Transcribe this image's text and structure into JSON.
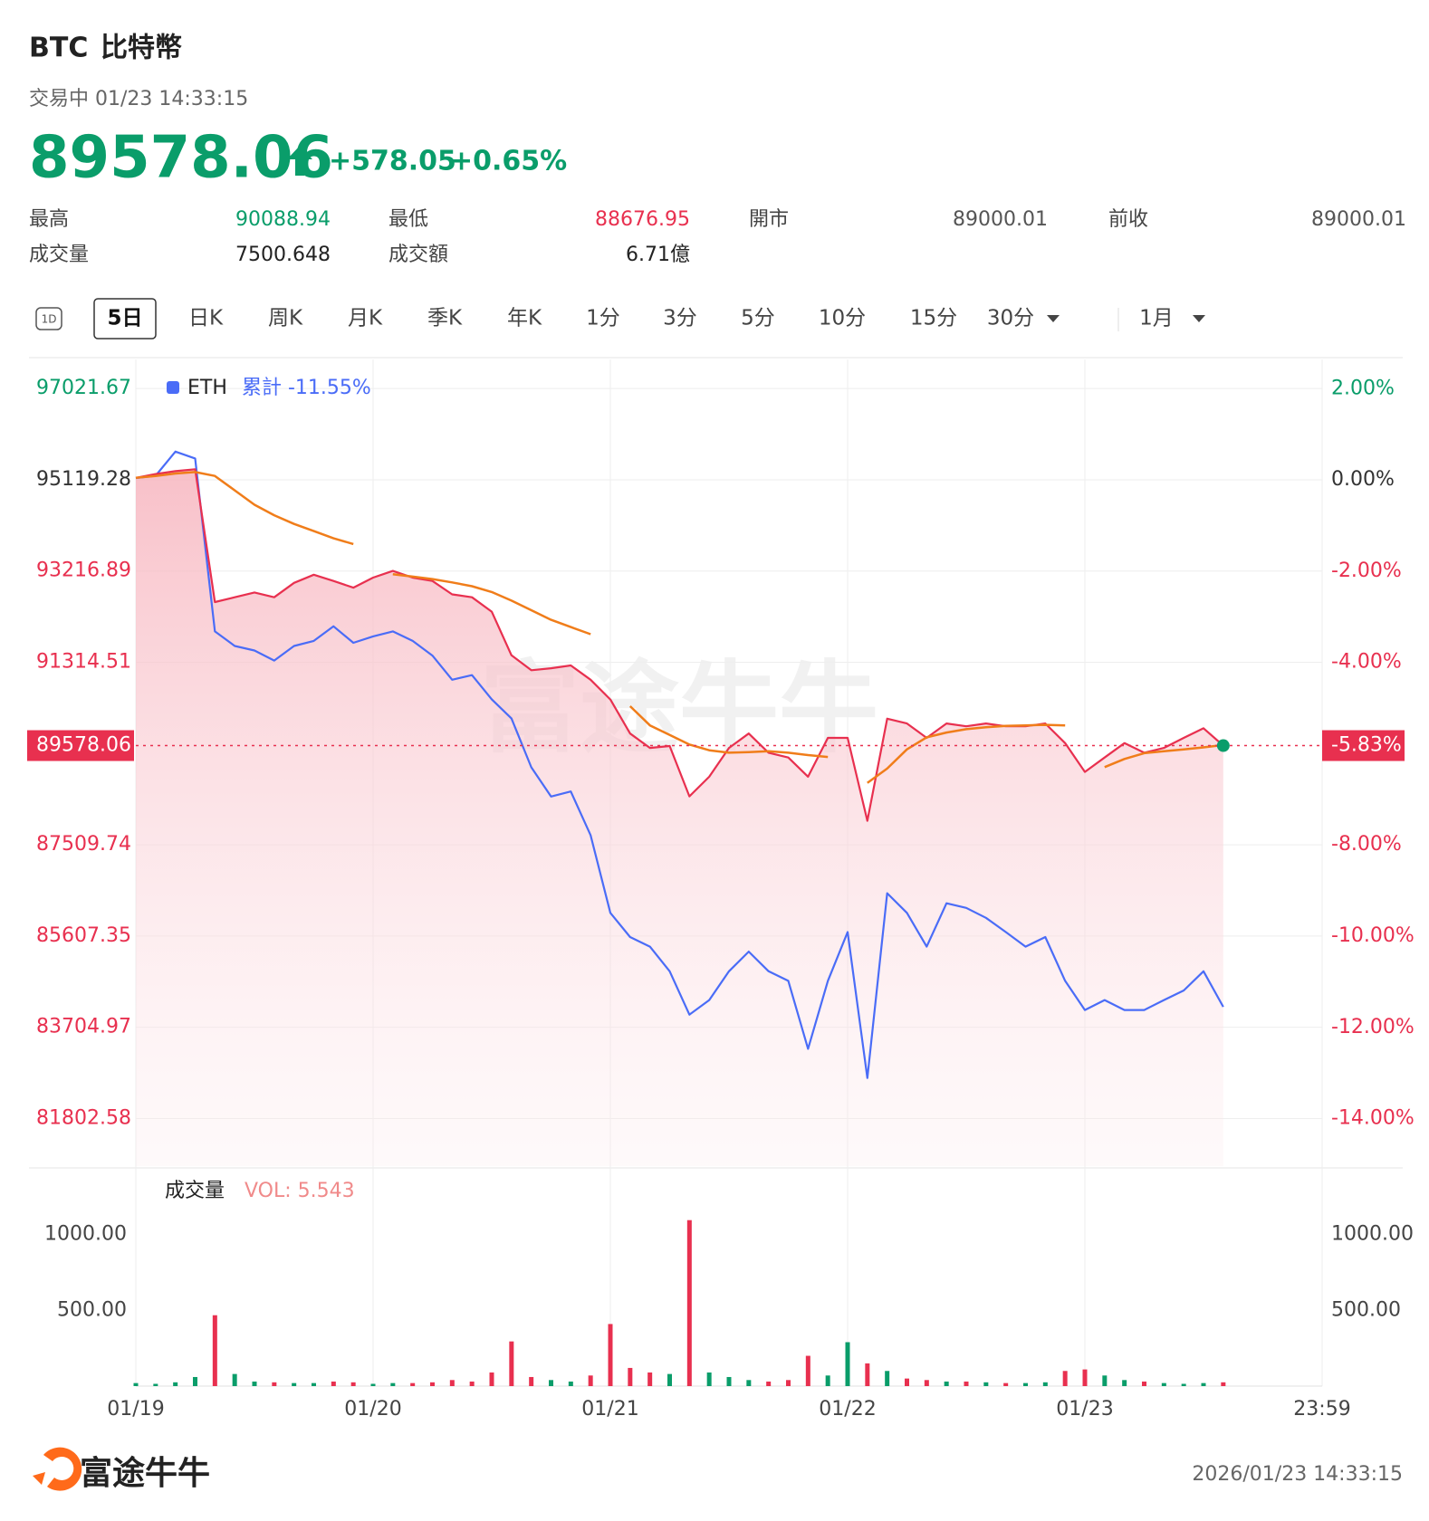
{
  "header": {
    "symbol": "BTC",
    "name": "比特幣",
    "status": "交易中 01/23 14:33:15",
    "price": "89578.06",
    "change": "+578.05",
    "change_pct": "+0.65%",
    "stats": [
      {
        "label": "最高",
        "value": "90088.94",
        "color": "#0a9d6a"
      },
      {
        "label": "最低",
        "value": "88676.95",
        "color": "#e8304f"
      },
      {
        "label": "開市",
        "value": "89000.01",
        "color": "#555555"
      },
      {
        "label": "前收",
        "value": "89000.01",
        "color": "#555555"
      },
      {
        "label": "成交量",
        "value": "7500.648",
        "color": "#222222"
      },
      {
        "label": "成交額",
        "value": "6.71億",
        "color": "#222222"
      }
    ]
  },
  "tabs": [
    {
      "label": "1D",
      "icon": true
    },
    {
      "label": "5日",
      "selected": true
    },
    {
      "label": "日K"
    },
    {
      "label": "周K"
    },
    {
      "label": "月K"
    },
    {
      "label": "季K"
    },
    {
      "label": "年K"
    },
    {
      "label": "1分"
    },
    {
      "label": "3分"
    },
    {
      "label": "5分"
    },
    {
      "label": "10分"
    },
    {
      "label": "15分"
    },
    {
      "label": "30分",
      "dropdown": true
    },
    {
      "label": "1月",
      "dropdown": true
    }
  ],
  "chart_data": [
    {
      "type": "line",
      "categories": [
        "01/19",
        null,
        null,
        null,
        null,
        null,
        null,
        null,
        null,
        null,
        null,
        null,
        "01/20",
        null,
        null,
        null,
        null,
        null,
        null,
        null,
        null,
        null,
        null,
        null,
        "01/21",
        null,
        null,
        null,
        null,
        null,
        null,
        null,
        null,
        null,
        null,
        null,
        "01/22",
        null,
        null,
        null,
        null,
        null,
        null,
        null,
        null,
        null,
        null,
        null,
        "01/23",
        null,
        null,
        null,
        null,
        null,
        null,
        null,
        null,
        null,
        null,
        null,
        "23:59"
      ],
      "series": [
        {
          "color": "#e8304f",
          "fill": true,
          "values": [
            95160,
            95240,
            95300,
            95340,
            92570,
            92670,
            92770,
            92670,
            92970,
            93140,
            93010,
            92870,
            93080,
            93220,
            93080,
            93010,
            92730,
            92670,
            92370,
            91460,
            91150,
            91190,
            91250,
            90950,
            90540,
            89830,
            89530,
            89570,
            88520,
            88930,
            89530,
            89830,
            89430,
            89330,
            88930,
            89740,
            89740,
            88010,
            90140,
            90040,
            89740,
            90040,
            89980,
            90040,
            89980,
            89980,
            90040,
            89630,
            89030,
            89330,
            89630,
            89430,
            89530,
            89740,
            89940,
            89578.06,
            null,
            null,
            null,
            null,
            null
          ]
        },
        {
          "name": "ETH",
          "color": "#4a6cf7",
          "axis": "y2",
          "values": [
            0.04,
            0.09,
            0.62,
            0.47,
            -3.32,
            -3.64,
            -3.74,
            -3.96,
            -3.64,
            -3.53,
            -3.21,
            -3.57,
            -3.43,
            -3.32,
            -3.53,
            -3.85,
            -4.38,
            -4.28,
            -4.81,
            -5.23,
            -6.3,
            -6.94,
            -6.83,
            -7.79,
            -9.49,
            -10.02,
            -10.23,
            -10.77,
            -11.72,
            -11.4,
            -10.77,
            -10.34,
            -10.77,
            -10.98,
            -12.47,
            -10.98,
            -9.91,
            -13.11,
            -9.06,
            -9.49,
            -10.23,
            -9.28,
            -9.38,
            -9.6,
            -9.91,
            -10.23,
            -10.02,
            -10.98,
            -11.62,
            -11.4,
            -11.62,
            -11.62,
            -11.4,
            -11.19,
            -10.77,
            -11.55,
            null,
            null,
            null,
            null,
            null
          ]
        },
        {
          "color": "#f07d1a",
          "values": [
            95160,
            95200,
            95250,
            95280,
            95200,
            94900,
            94600,
            94380,
            94200,
            94050,
            93900,
            93780,
            null,
            93150,
            93100,
            93050,
            92980,
            92900,
            92780,
            92600,
            92400,
            92200,
            92050,
            91900,
            null,
            90400,
            90000,
            89800,
            89600,
            89480,
            89430,
            89440,
            89460,
            89430,
            89380,
            89340,
            null,
            88800,
            89100,
            89500,
            89750,
            89850,
            89920,
            89960,
            89990,
            90000,
            90010,
            90000,
            null,
            89130,
            89300,
            89420,
            89460,
            89500,
            89540,
            89590,
            null,
            null,
            null,
            null,
            null
          ]
        }
      ],
      "legend_note": "累計 -11.55%",
      "watermark": "富途牛牛",
      "ylim": [
        80811,
        97629
      ],
      "yticks": [
        97021.67,
        95119.28,
        93216.89,
        91314.51,
        87509.74,
        85607.35,
        83704.97,
        81802.58
      ],
      "y2lim": [
        -15.04,
        2.64
      ],
      "y2ticks": [
        {
          "value": 2,
          "label": "2.00%"
        },
        {
          "value": 0,
          "label": "0.00%"
        },
        {
          "value": -2,
          "label": "-2.00%"
        },
        {
          "value": -4,
          "label": "-4.00%"
        },
        {
          "value": -8,
          "label": "-8.00%"
        },
        {
          "value": -10,
          "label": "-10.00%"
        },
        {
          "value": -12,
          "label": "-12.00%"
        },
        {
          "value": -14,
          "label": "-14.00%"
        }
      ],
      "last_value": 89578.06,
      "last_change_label": "-5.83%",
      "grid": true
    },
    {
      "type": "bar",
      "title": "成交量",
      "annotation": "VOL: 5.543",
      "up_color": "#0a9d6a",
      "down_color": "#e8304f",
      "values": [
        20,
        15,
        25,
        60,
        468,
        80,
        30,
        25,
        20,
        20,
        30,
        25,
        15,
        20,
        20,
        25,
        40,
        30,
        90,
        295,
        60,
        40,
        30,
        70,
        410,
        120,
        90,
        80,
        1096,
        90,
        60,
        40,
        30,
        40,
        200,
        70,
        290,
        150,
        100,
        50,
        40,
        30,
        30,
        25,
        20,
        20,
        25,
        100,
        110,
        70,
        40,
        30,
        20,
        15,
        20,
        25,
        null,
        null,
        null,
        null,
        null
      ],
      "ylim": [
        0,
        1417
      ],
      "yticks": [
        {
          "value": 500,
          "label": "500.00"
        },
        {
          "value": 1000,
          "label": "1000.00"
        }
      ]
    }
  ],
  "footer": {
    "brand": "富途牛牛",
    "timestamp": "2026/01/23 14:33:15"
  }
}
